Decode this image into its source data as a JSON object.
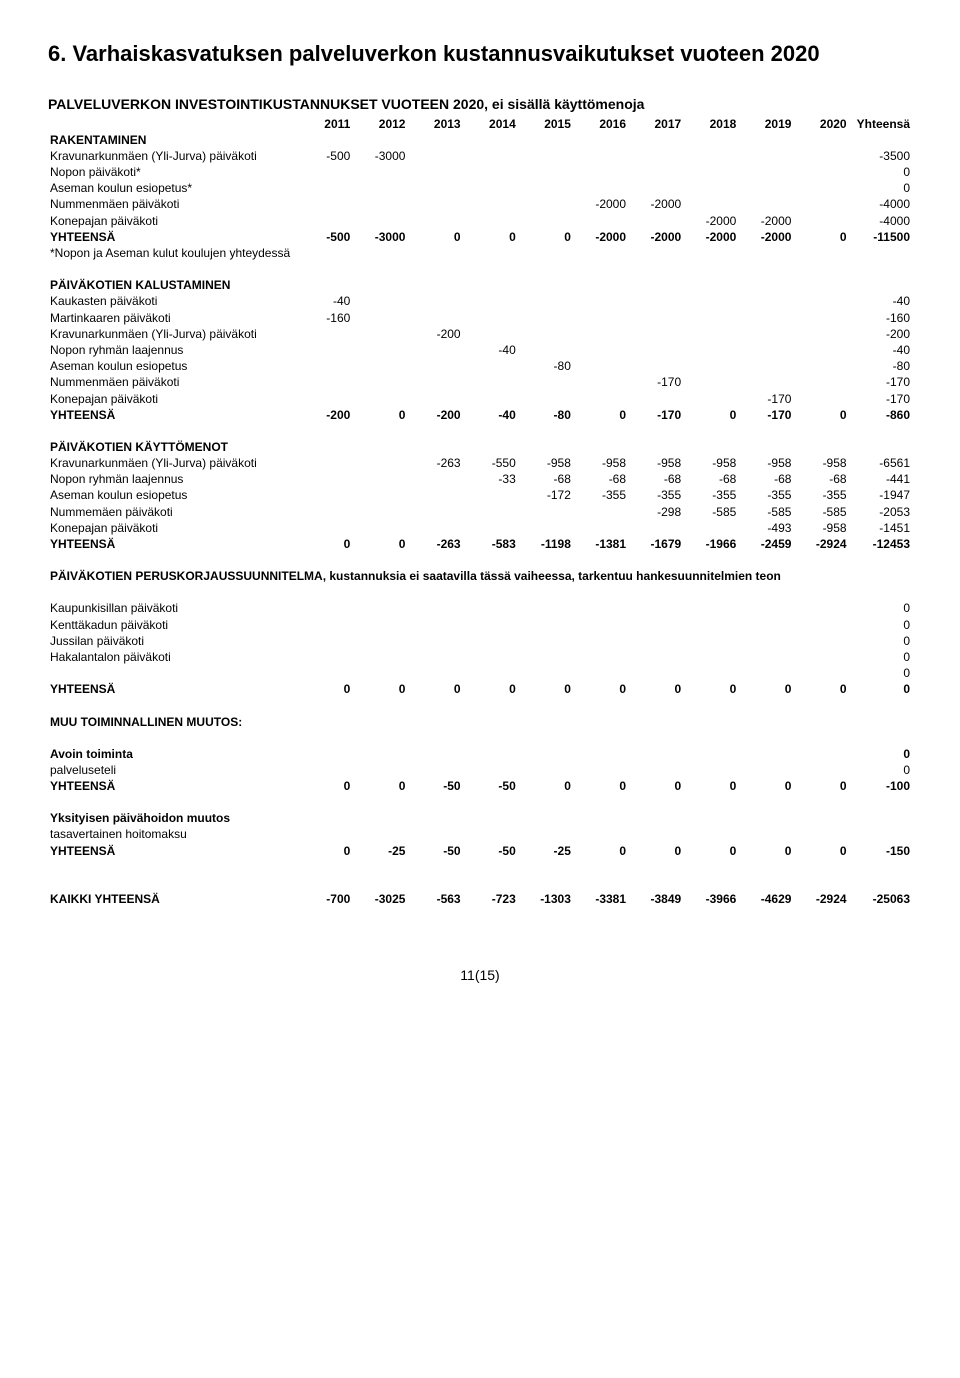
{
  "page": {
    "title": "6. Varhaiskasvatuksen palveluverkon kustannusvaikutukset vuoteen 2020",
    "main_heading": "PALVELUVERKON INVESTOINTIKUSTANNUKSET VUOTEEN 2020, ei sisällä käyttömenoja",
    "years": [
      "2011",
      "2012",
      "2013",
      "2014",
      "2015",
      "2016",
      "2017",
      "2018",
      "2019",
      "2020",
      "Yhteensä"
    ],
    "footer": "11(15)"
  },
  "sections": [
    {
      "title": "RAKENTAMINEN",
      "rows": [
        {
          "label": "Kravunarkunmäen (Yli-Jurva) päiväkoti",
          "cells": [
            "-500",
            "-3000",
            "",
            "",
            "",
            "",
            "",
            "",
            "",
            "",
            "-3500"
          ]
        },
        {
          "label": "Nopon päiväkoti*",
          "cells": [
            "",
            "",
            "",
            "",
            "",
            "",
            "",
            "",
            "",
            "",
            "0"
          ]
        },
        {
          "label": "Aseman koulun esiopetus*",
          "cells": [
            "",
            "",
            "",
            "",
            "",
            "",
            "",
            "",
            "",
            "",
            "0"
          ]
        },
        {
          "label": "Nummenmäen päiväkoti",
          "cells": [
            "",
            "",
            "",
            "",
            "",
            "-2000",
            "-2000",
            "",
            "",
            "",
            "-4000"
          ]
        },
        {
          "label": "Konepajan päiväkoti",
          "cells": [
            "",
            "",
            "",
            "",
            "",
            "",
            "",
            "-2000",
            "-2000",
            "",
            "-4000"
          ]
        },
        {
          "label": "YHTEENSÄ",
          "bold": true,
          "cells": [
            "-500",
            "-3000",
            "0",
            "0",
            "0",
            "-2000",
            "-2000",
            "-2000",
            "-2000",
            "0",
            "-11500"
          ]
        },
        {
          "label": "*Nopon ja Aseman kulut koulujen yhteydessä",
          "cells": [
            "",
            "",
            "",
            "",
            "",
            "",
            "",
            "",
            "",
            "",
            ""
          ]
        }
      ]
    },
    {
      "title": "PÄIVÄKOTIEN KALUSTAMINEN",
      "rows": [
        {
          "label": "Kaukasten päiväkoti",
          "cells": [
            "-40",
            "",
            "",
            "",
            "",
            "",
            "",
            "",
            "",
            "",
            "-40"
          ]
        },
        {
          "label": "Martinkaaren päiväkoti",
          "cells": [
            "-160",
            "",
            "",
            "",
            "",
            "",
            "",
            "",
            "",
            "",
            "-160"
          ]
        },
        {
          "label": "Kravunarkunmäen (Yli-Jurva) päiväkoti",
          "cells": [
            "",
            "",
            "-200",
            "",
            "",
            "",
            "",
            "",
            "",
            "",
            "-200"
          ]
        },
        {
          "label": "Nopon ryhmän laajennus",
          "cells": [
            "",
            "",
            "",
            "-40",
            "",
            "",
            "",
            "",
            "",
            "",
            "-40"
          ]
        },
        {
          "label": "Aseman koulun esiopetus",
          "cells": [
            "",
            "",
            "",
            "",
            "-80",
            "",
            "",
            "",
            "",
            "",
            "-80"
          ]
        },
        {
          "label": "Nummenmäen päiväkoti",
          "cells": [
            "",
            "",
            "",
            "",
            "",
            "",
            "-170",
            "",
            "",
            "",
            "-170"
          ]
        },
        {
          "label": "Konepajan päiväkoti",
          "cells": [
            "",
            "",
            "",
            "",
            "",
            "",
            "",
            "",
            "-170",
            "",
            "-170"
          ]
        },
        {
          "label": "YHTEENSÄ",
          "bold": true,
          "cells": [
            "-200",
            "0",
            "-200",
            "-40",
            "-80",
            "0",
            "-170",
            "0",
            "-170",
            "0",
            "-860"
          ]
        }
      ]
    },
    {
      "title": "PÄIVÄKOTIEN KÄYTTÖMENOT",
      "rows": [
        {
          "label": "Kravunarkunmäen (Yli-Jurva) päiväkoti",
          "cells": [
            "",
            "",
            "-263",
            "-550",
            "-958",
            "-958",
            "-958",
            "-958",
            "-958",
            "-958",
            "-6561"
          ]
        },
        {
          "label": "Nopon ryhmän laajennus",
          "cells": [
            "",
            "",
            "",
            "-33",
            "-68",
            "-68",
            "-68",
            "-68",
            "-68",
            "-68",
            "-441"
          ]
        },
        {
          "label": "Aseman koulun esiopetus",
          "cells": [
            "",
            "",
            "",
            "",
            "-172",
            "-355",
            "-355",
            "-355",
            "-355",
            "-355",
            "-1947"
          ]
        },
        {
          "label": "Nummemäen päiväkoti",
          "cells": [
            "",
            "",
            "",
            "",
            "",
            "",
            "-298",
            "-585",
            "-585",
            "-585",
            "-2053"
          ]
        },
        {
          "label": "Konepajan päiväkoti",
          "cells": [
            "",
            "",
            "",
            "",
            "",
            "",
            "",
            "",
            "-493",
            "-958",
            "-1451"
          ]
        },
        {
          "label": "YHTEENSÄ",
          "bold": true,
          "cells": [
            "0",
            "0",
            "-263",
            "-583",
            "-1198",
            "-1381",
            "-1679",
            "-1966",
            "-2459",
            "-2924",
            "-12453"
          ]
        }
      ]
    }
  ],
  "perusk_note": "PÄIVÄKOTIEN PERUSKORJAUSSUUNNITELMA, kustannuksia ei saatavilla tässä vaiheessa, tarkentuu hankesuunnitelmien teon",
  "perusk_rows": [
    {
      "label": "Kaupunkisillan päiväkoti",
      "cells": [
        "",
        "",
        "",
        "",
        "",
        "",
        "",
        "",
        "",
        "",
        "0"
      ]
    },
    {
      "label": "Kenttäkadun päiväkoti",
      "cells": [
        "",
        "",
        "",
        "",
        "",
        "",
        "",
        "",
        "",
        "",
        "0"
      ]
    },
    {
      "label": "Jussilan päiväkoti",
      "cells": [
        "",
        "",
        "",
        "",
        "",
        "",
        "",
        "",
        "",
        "",
        "0"
      ]
    },
    {
      "label": "Hakalantalon päiväkoti",
      "cells": [
        "",
        "",
        "",
        "",
        "",
        "",
        "",
        "",
        "",
        "",
        "0"
      ]
    },
    {
      "label": "",
      "cells": [
        "",
        "",
        "",
        "",
        "",
        "",
        "",
        "",
        "",
        "",
        "0"
      ]
    },
    {
      "label": "YHTEENSÄ",
      "bold": true,
      "cells": [
        "0",
        "0",
        "0",
        "0",
        "0",
        "0",
        "0",
        "0",
        "0",
        "0",
        "0"
      ]
    }
  ],
  "muu_title": "MUU TOIMINNALLINEN MUUTOS:",
  "muu_blocks": [
    {
      "rows": [
        {
          "label": "Avoin toiminta",
          "bold": true,
          "cells": [
            "",
            "",
            "",
            "",
            "",
            "",
            "",
            "",
            "",
            "",
            "0"
          ]
        },
        {
          "label": "palveluseteli",
          "cells": [
            "",
            "",
            "",
            "",
            "",
            "",
            "",
            "",
            "",
            "",
            "0"
          ]
        },
        {
          "label": "YHTEENSÄ",
          "bold": true,
          "cells": [
            "0",
            "0",
            "-50",
            "-50",
            "0",
            "0",
            "0",
            "0",
            "0",
            "0",
            "-100"
          ]
        }
      ]
    },
    {
      "rows": [
        {
          "label": "Yksityisen päivähoidon muutos",
          "bold": true,
          "cells": [
            "",
            "",
            "",
            "",
            "",
            "",
            "",
            "",
            "",
            "",
            ""
          ]
        },
        {
          "label": "tasavertainen hoitomaksu",
          "cells": [
            "",
            "",
            "",
            "",
            "",
            "",
            "",
            "",
            "",
            "",
            ""
          ]
        },
        {
          "label": "YHTEENSÄ",
          "bold": true,
          "cells": [
            "0",
            "-25",
            "-50",
            "-50",
            "-25",
            "0",
            "0",
            "0",
            "0",
            "0",
            "-150"
          ]
        }
      ]
    }
  ],
  "kaikki": {
    "label": "KAIKKI YHTEENSÄ",
    "cells": [
      "-700",
      "-3025",
      "-563",
      "-723",
      "-1303",
      "-3381",
      "-3849",
      "-3966",
      "-4629",
      "-2924",
      "-25063"
    ]
  }
}
